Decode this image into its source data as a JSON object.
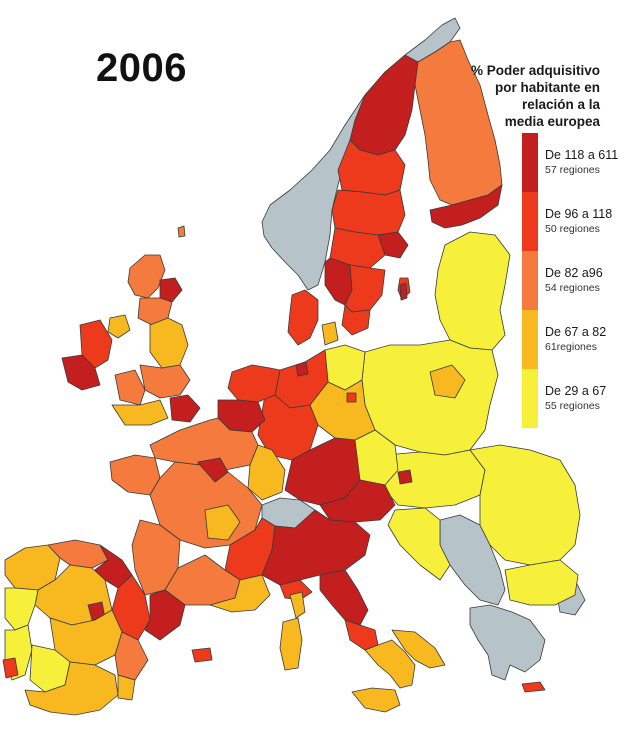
{
  "year": "2006",
  "legend": {
    "title_lines": [
      "% Poder adquisitivo",
      "por habitante en",
      "relación a la",
      "media europea"
    ],
    "items": [
      {
        "range": "De 118 a 611",
        "count": "57 regiones",
        "color": "#c41f1f"
      },
      {
        "range": "De 96 a 118",
        "count": "50 regiones",
        "color": "#ee3a1c"
      },
      {
        "range": "De 82 a96",
        "count": "54 regiones",
        "color": "#f47a3e"
      },
      {
        "range": "De 67 a 82",
        "count": "61regiones",
        "color": "#f7b820"
      },
      {
        "range": "De 29 a 67",
        "count": "55 regiones",
        "color": "#f6f03a"
      }
    ]
  },
  "colors": {
    "no_data": "#b6c3c8",
    "background": "#ffffff"
  }
}
